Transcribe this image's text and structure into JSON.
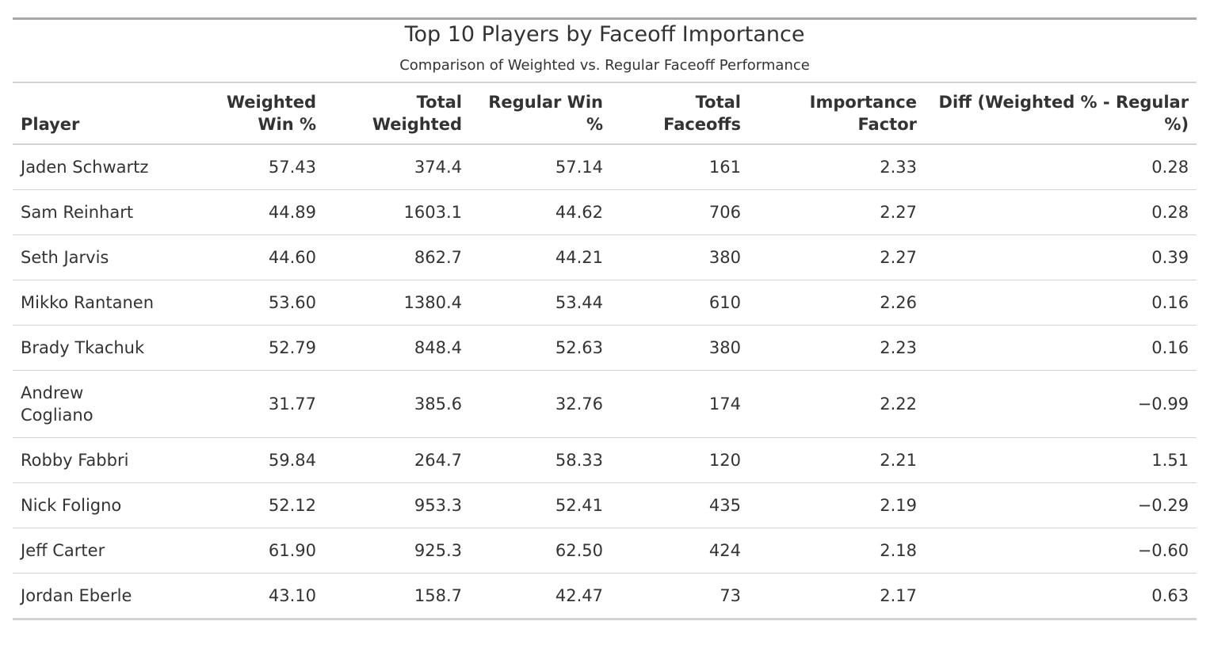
{
  "chart_data": {
    "type": "table",
    "title": "Top 10 Players by Faceoff Importance",
    "subtitle": "Comparison of Weighted vs. Regular Faceoff Performance",
    "columns": [
      "Player",
      "Weighted Win %",
      "Total Weighted",
      "Regular Win %",
      "Total Faceoffs",
      "Importance Factor",
      "Diff (Weighted % - Regular %)"
    ],
    "rows": [
      [
        "Jaden Schwartz",
        "57.43",
        "374.4",
        "57.14",
        "161",
        "2.33",
        "0.28"
      ],
      [
        "Sam Reinhart",
        "44.89",
        "1603.1",
        "44.62",
        "706",
        "2.27",
        "0.28"
      ],
      [
        "Seth Jarvis",
        "44.60",
        "862.7",
        "44.21",
        "380",
        "2.27",
        "0.39"
      ],
      [
        "Mikko Rantanen",
        "53.60",
        "1380.4",
        "53.44",
        "610",
        "2.26",
        "0.16"
      ],
      [
        "Brady Tkachuk",
        "52.79",
        "848.4",
        "52.63",
        "380",
        "2.23",
        "0.16"
      ],
      [
        "Andrew Cogliano",
        "31.77",
        "385.6",
        "32.76",
        "174",
        "2.22",
        "−0.99"
      ],
      [
        "Robby Fabbri",
        "59.84",
        "264.7",
        "58.33",
        "120",
        "2.21",
        "1.51"
      ],
      [
        "Nick Foligno",
        "52.12",
        "953.3",
        "52.41",
        "435",
        "2.19",
        "−0.29"
      ],
      [
        "Jeff Carter",
        "61.90",
        "925.3",
        "62.50",
        "424",
        "2.18",
        "−0.60"
      ],
      [
        "Jordan Eberle",
        "43.10",
        "158.7",
        "42.47",
        "73",
        "2.17",
        "0.63"
      ]
    ]
  }
}
